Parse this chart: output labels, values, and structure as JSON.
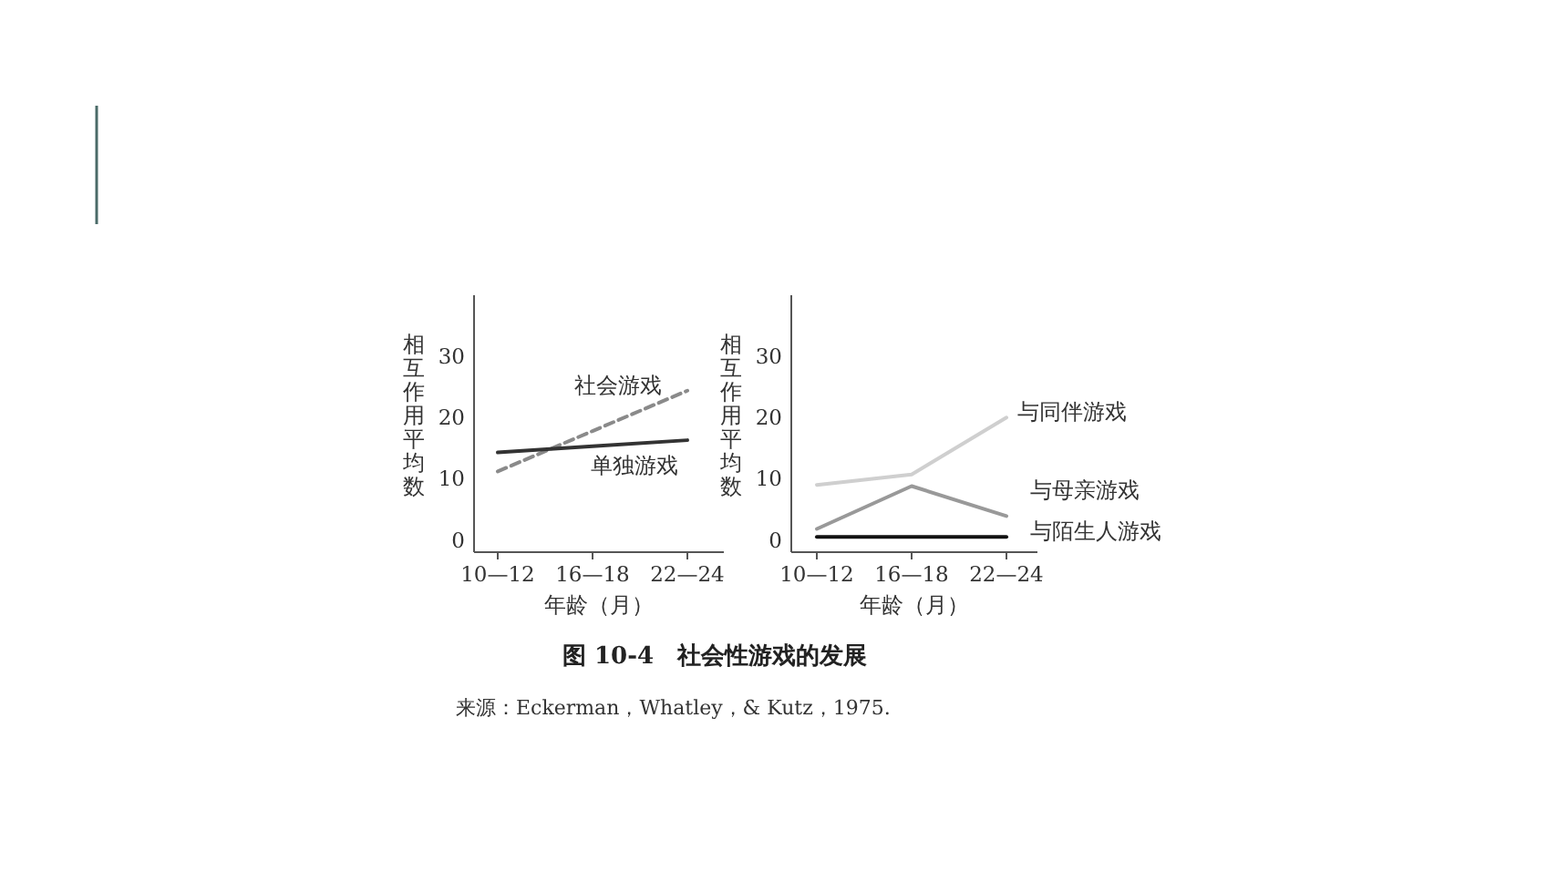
{
  "chart_data": [
    {
      "type": "line",
      "title": "图 10-4　社会性游戏的发展",
      "annotations": [
        "来源：Eckerman，Whatley，& Kutz，1975."
      ],
      "categories": [
        "10—12",
        "16—18",
        "22—24"
      ],
      "xlabel": "年龄（月）",
      "ylabel": "相互作用平均数",
      "ylim": [
        -2,
        40
      ],
      "yticks": [
        0,
        10,
        20,
        30
      ],
      "grid": false,
      "series": [
        {
          "name": "社会游戏",
          "color": "#8a8a8a",
          "line_style": "dashed",
          "values": [
            11.2,
            17.8,
            24.4
          ]
        },
        {
          "name": "单独游戏",
          "color": "#333333",
          "line_style": "solid",
          "values": [
            14.3,
            15.3,
            16.3
          ]
        }
      ]
    },
    {
      "type": "line",
      "categories": [
        "10—12",
        "16—18",
        "22—24"
      ],
      "xlabel": "年龄（月）",
      "ylabel": "相互作用平均数",
      "ylim": [
        -2,
        40
      ],
      "yticks": [
        0,
        10,
        20,
        30
      ],
      "grid": false,
      "series": [
        {
          "name": "与同伴游戏",
          "color": "#cfcfcf",
          "line_style": "solid",
          "values": [
            9.0,
            10.7,
            20.0
          ]
        },
        {
          "name": "与母亲游戏",
          "color": "#999999",
          "line_style": "solid",
          "values": [
            1.8,
            8.8,
            3.9
          ]
        },
        {
          "name": "与陌生人游戏",
          "color": "#111111",
          "line_style": "solid",
          "values": [
            0.5,
            0.5,
            0.5
          ]
        }
      ]
    }
  ]
}
